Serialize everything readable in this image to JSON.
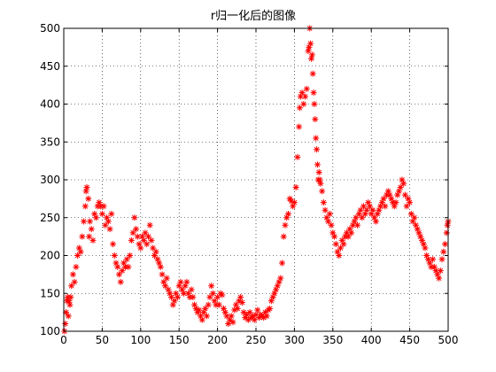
{
  "chart_data": {
    "type": "scatter",
    "title": "r归一化后的图像",
    "xlabel": "",
    "ylabel": "",
    "xlim": [
      0,
      500
    ],
    "ylim": [
      100,
      500
    ],
    "xticks": [
      0,
      50,
      100,
      150,
      200,
      250,
      300,
      350,
      400,
      450,
      500
    ],
    "yticks": [
      100,
      150,
      200,
      250,
      300,
      350,
      400,
      450,
      500
    ],
    "grid": true,
    "marker": "*",
    "series": [
      {
        "color": "#ff0000",
        "points": [
          [
            1,
            100
          ],
          [
            2,
            110
          ],
          [
            3,
            125
          ],
          [
            4,
            140
          ],
          [
            5,
            145
          ],
          [
            6,
            120
          ],
          [
            7,
            140
          ],
          [
            8,
            135
          ],
          [
            9,
            145
          ],
          [
            10,
            160
          ],
          [
            12,
            175
          ],
          [
            14,
            165
          ],
          [
            16,
            185
          ],
          [
            18,
            200
          ],
          [
            20,
            210
          ],
          [
            22,
            205
          ],
          [
            24,
            225
          ],
          [
            26,
            245
          ],
          [
            28,
            265
          ],
          [
            29,
            285
          ],
          [
            30,
            290
          ],
          [
            32,
            275
          ],
          [
            33,
            225
          ],
          [
            34,
            245
          ],
          [
            36,
            235
          ],
          [
            38,
            220
          ],
          [
            40,
            255
          ],
          [
            42,
            250
          ],
          [
            44,
            265
          ],
          [
            46,
            270
          ],
          [
            48,
            265
          ],
          [
            50,
            255
          ],
          [
            52,
            265
          ],
          [
            54,
            240
          ],
          [
            56,
            250
          ],
          [
            58,
            245
          ],
          [
            60,
            235
          ],
          [
            62,
            255
          ],
          [
            64,
            215
          ],
          [
            66,
            200
          ],
          [
            68,
            190
          ],
          [
            70,
            185
          ],
          [
            72,
            175
          ],
          [
            74,
            165
          ],
          [
            76,
            180
          ],
          [
            78,
            190
          ],
          [
            80,
            185
          ],
          [
            82,
            195
          ],
          [
            84,
            185
          ],
          [
            86,
            200
          ],
          [
            88,
            220
          ],
          [
            90,
            230
          ],
          [
            92,
            250
          ],
          [
            94,
            235
          ],
          [
            96,
            225
          ],
          [
            98,
            215
          ],
          [
            100,
            210
          ],
          [
            102,
            225
          ],
          [
            104,
            220
          ],
          [
            106,
            230
          ],
          [
            108,
            215
          ],
          [
            110,
            225
          ],
          [
            112,
            240
          ],
          [
            114,
            220
          ],
          [
            116,
            210
          ],
          [
            118,
            200
          ],
          [
            120,
            205
          ],
          [
            122,
            195
          ],
          [
            124,
            190
          ],
          [
            126,
            185
          ],
          [
            128,
            175
          ],
          [
            130,
            165
          ],
          [
            132,
            160
          ],
          [
            134,
            170
          ],
          [
            136,
            155
          ],
          [
            138,
            150
          ],
          [
            140,
            145
          ],
          [
            142,
            135
          ],
          [
            144,
            140
          ],
          [
            146,
            150
          ],
          [
            148,
            145
          ],
          [
            150,
            160
          ],
          [
            152,
            165
          ],
          [
            154,
            155
          ],
          [
            156,
            150
          ],
          [
            158,
            160
          ],
          [
            160,
            165
          ],
          [
            162,
            150
          ],
          [
            164,
            145
          ],
          [
            166,
            155
          ],
          [
            168,
            145
          ],
          [
            170,
            135
          ],
          [
            172,
            130
          ],
          [
            174,
            125
          ],
          [
            176,
            128
          ],
          [
            178,
            120
          ],
          [
            180,
            115
          ],
          [
            182,
            125
          ],
          [
            184,
            130
          ],
          [
            186,
            120
          ],
          [
            188,
            135
          ],
          [
            190,
            145
          ],
          [
            192,
            160
          ],
          [
            194,
            150
          ],
          [
            196,
            140
          ],
          [
            198,
            135
          ],
          [
            200,
            145
          ],
          [
            202,
            135
          ],
          [
            204,
            150
          ],
          [
            206,
            148
          ],
          [
            208,
            130
          ],
          [
            210,
            125
          ],
          [
            212,
            120
          ],
          [
            214,
            110
          ],
          [
            216,
            115
          ],
          [
            218,
            120
          ],
          [
            220,
            112
          ],
          [
            222,
            128
          ],
          [
            224,
            135
          ],
          [
            226,
            130
          ],
          [
            228,
            140
          ],
          [
            230,
            145
          ],
          [
            232,
            138
          ],
          [
            234,
            125
          ],
          [
            236,
            118
          ],
          [
            238,
            122
          ],
          [
            240,
            115
          ],
          [
            242,
            125
          ],
          [
            244,
            118
          ],
          [
            246,
            120
          ],
          [
            248,
            115
          ],
          [
            250,
            122
          ],
          [
            252,
            128
          ],
          [
            254,
            118
          ],
          [
            256,
            122
          ],
          [
            258,
            120
          ],
          [
            260,
            118
          ],
          [
            262,
            125
          ],
          [
            264,
            120
          ],
          [
            266,
            128
          ],
          [
            268,
            130
          ],
          [
            270,
            140
          ],
          [
            272,
            145
          ],
          [
            274,
            150
          ],
          [
            276,
            155
          ],
          [
            278,
            160
          ],
          [
            280,
            165
          ],
          [
            282,
            170
          ],
          [
            284,
            190
          ],
          [
            286,
            225
          ],
          [
            288,
            240
          ],
          [
            290,
            250
          ],
          [
            292,
            255
          ],
          [
            294,
            275
          ],
          [
            296,
            272
          ],
          [
            298,
            265
          ],
          [
            300,
            270
          ],
          [
            302,
            290
          ],
          [
            304,
            330
          ],
          [
            306,
            370
          ],
          [
            307,
            395
          ],
          [
            308,
            410
          ],
          [
            310,
            415
          ],
          [
            312,
            400
          ],
          [
            314,
            410
          ],
          [
            316,
            420
          ],
          [
            318,
            470
          ],
          [
            319,
            475
          ],
          [
            320,
            500
          ],
          [
            321,
            480
          ],
          [
            322,
            460
          ],
          [
            323,
            465
          ],
          [
            324,
            440
          ],
          [
            325,
            415
          ],
          [
            326,
            400
          ],
          [
            327,
            380
          ],
          [
            328,
            355
          ],
          [
            329,
            340
          ],
          [
            330,
            320
          ],
          [
            331,
            300
          ],
          [
            332,
            310
          ],
          [
            333,
            300
          ],
          [
            334,
            295
          ],
          [
            336,
            285
          ],
          [
            338,
            270
          ],
          [
            340,
            260
          ],
          [
            342,
            250
          ],
          [
            344,
            245
          ],
          [
            346,
            255
          ],
          [
            348,
            240
          ],
          [
            350,
            230
          ],
          [
            352,
            225
          ],
          [
            354,
            215
          ],
          [
            356,
            205
          ],
          [
            358,
            200
          ],
          [
            360,
            210
          ],
          [
            362,
            220
          ],
          [
            364,
            215
          ],
          [
            366,
            225
          ],
          [
            368,
            230
          ],
          [
            370,
            225
          ],
          [
            372,
            235
          ],
          [
            374,
            230
          ],
          [
            376,
            240
          ],
          [
            378,
            245
          ],
          [
            380,
            250
          ],
          [
            382,
            240
          ],
          [
            384,
            255
          ],
          [
            386,
            260
          ],
          [
            388,
            250
          ],
          [
            390,
            265
          ],
          [
            392,
            255
          ],
          [
            394,
            260
          ],
          [
            396,
            270
          ],
          [
            398,
            265
          ],
          [
            400,
            255
          ],
          [
            402,
            260
          ],
          [
            404,
            250
          ],
          [
            406,
            245
          ],
          [
            408,
            255
          ],
          [
            410,
            260
          ],
          [
            412,
            265
          ],
          [
            414,
            270
          ],
          [
            416,
            275
          ],
          [
            418,
            265
          ],
          [
            420,
            280
          ],
          [
            422,
            285
          ],
          [
            424,
            280
          ],
          [
            426,
            275
          ],
          [
            428,
            270
          ],
          [
            430,
            265
          ],
          [
            432,
            270
          ],
          [
            434,
            280
          ],
          [
            436,
            285
          ],
          [
            438,
            290
          ],
          [
            440,
            300
          ],
          [
            442,
            295
          ],
          [
            444,
            280
          ],
          [
            446,
            265
          ],
          [
            448,
            275
          ],
          [
            450,
            270
          ],
          [
            452,
            255
          ],
          [
            454,
            245
          ],
          [
            456,
            250
          ],
          [
            458,
            240
          ],
          [
            460,
            235
          ],
          [
            462,
            230
          ],
          [
            464,
            225
          ],
          [
            466,
            220
          ],
          [
            468,
            215
          ],
          [
            470,
            210
          ],
          [
            472,
            200
          ],
          [
            474,
            195
          ],
          [
            476,
            190
          ],
          [
            478,
            185
          ],
          [
            480,
            195
          ],
          [
            482,
            185
          ],
          [
            484,
            180
          ],
          [
            486,
            175
          ],
          [
            488,
            170
          ],
          [
            490,
            180
          ],
          [
            492,
            195
          ],
          [
            494,
            205
          ],
          [
            496,
            215
          ],
          [
            498,
            230
          ],
          [
            499,
            240
          ],
          [
            500,
            245
          ]
        ]
      }
    ]
  }
}
